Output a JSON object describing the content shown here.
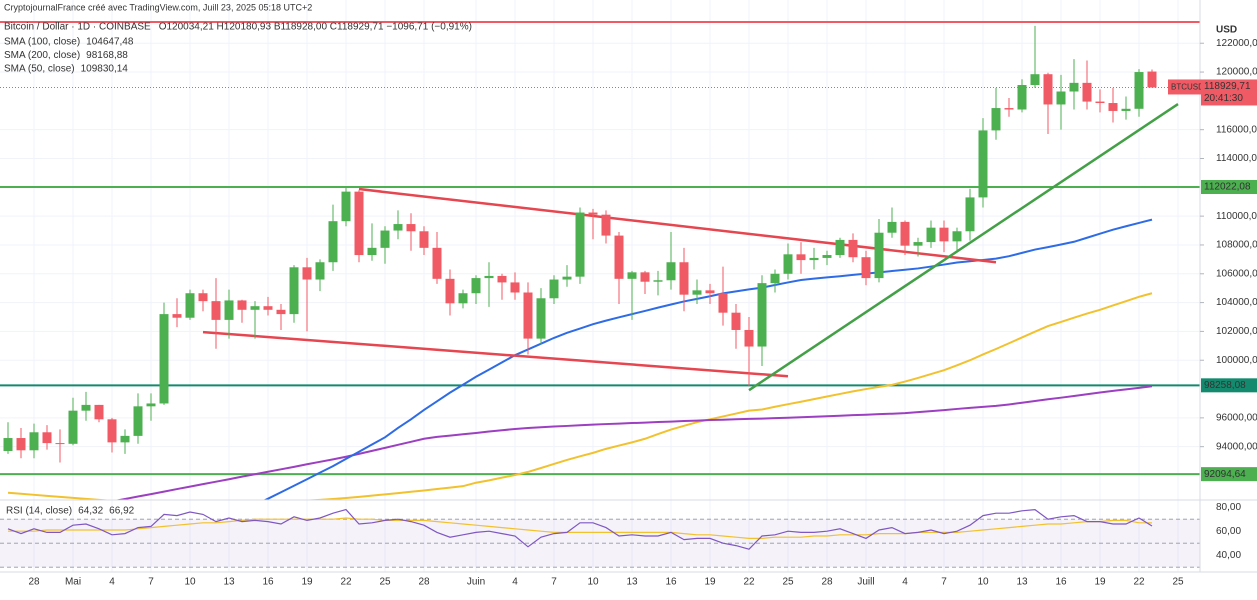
{
  "header": {
    "credit": "CryptojournalFrance créé avec TradingView.com, Juill 23, 2025 05:18 UTC+2",
    "symbol": "Bitcoin / Dollar · 1D · COINBASE",
    "ohlc": "O120034,21 H120180,93 B118928,00 C118929,71 −1096,71 (−0,91%)"
  },
  "chart_data": {
    "type": "candlestick",
    "categories": [
      null,
      null,
      "28",
      null,
      null,
      "Mai",
      null,
      null,
      "4",
      null,
      null,
      "7",
      null,
      null,
      "10",
      null,
      null,
      "13",
      null,
      null,
      "16",
      null,
      null,
      "19",
      null,
      null,
      "22",
      null,
      null,
      "25",
      null,
      null,
      "28",
      null,
      null,
      null,
      "Juin",
      null,
      null,
      "4",
      null,
      null,
      "7",
      null,
      null,
      "10",
      null,
      null,
      "13",
      null,
      null,
      "16",
      null,
      null,
      "19",
      null,
      null,
      "22",
      null,
      null,
      "25",
      null,
      null,
      "28",
      null,
      null,
      "Juill",
      null,
      null,
      "4",
      null,
      null,
      "7",
      null,
      null,
      "10",
      null,
      null,
      "13",
      null,
      null,
      "16",
      null,
      null,
      "19",
      null,
      null,
      "22",
      null,
      null,
      "25"
    ],
    "open": [
      93700,
      94600,
      93750,
      95000,
      94250,
      94200,
      96500,
      96900,
      95900,
      94300,
      94750,
      96800,
      97000,
      103200,
      102950,
      104650,
      104100,
      102800,
      104150,
      103500,
      103750,
      103500,
      103200,
      106450,
      105600,
      106800,
      109650,
      111700,
      107300,
      107800,
      109000,
      109450,
      108950,
      107800,
      105650,
      103950,
      104650,
      105700,
      105850,
      105400,
      104700,
      101500,
      104300,
      105600,
      105800,
      110250,
      110100,
      108650,
      105650,
      106100,
      105450,
      105550,
      106800,
      104550,
      104850,
      104650,
      103300,
      102100,
      100950,
      105350,
      106000,
      107350,
      106950,
      107100,
      107300,
      108350,
      107150,
      105700,
      108850,
      109600,
      107950,
      108200,
      109200,
      108250,
      108950,
      111300,
      115950,
      117500,
      117400,
      119100,
      119850,
      117750,
      118650,
      119250,
      117950,
      117850,
      117300,
      117450,
      120034.21,
      null,
      null
    ],
    "high": [
      95700,
      95300,
      95600,
      95500,
      95200,
      97400,
      97800,
      96900,
      96000,
      95200,
      97700,
      97700,
      104000,
      104300,
      104900,
      104900,
      105700,
      104900,
      104200,
      104100,
      104400,
      103900,
      106600,
      107100,
      107000,
      110800,
      111980,
      111800,
      109500,
      109300,
      110400,
      110200,
      109300,
      108900,
      106300,
      104900,
      105900,
      106800,
      106000,
      106100,
      105400,
      105000,
      105900,
      106600,
      110600,
      110500,
      110400,
      108900,
      106200,
      106200,
      106200,
      108900,
      107800,
      105600,
      105300,
      106500,
      103900,
      103000,
      105900,
      106300,
      108100,
      108200,
      107800,
      107600,
      108500,
      108800,
      107600,
      109800,
      110600,
      109700,
      108500,
      109700,
      109700,
      109200,
      111900,
      116800,
      118900,
      118200,
      119500,
      123200,
      119950,
      119800,
      120900,
      120800,
      118800,
      118900,
      118300,
      120200,
      120180.93,
      null,
      null
    ],
    "low": [
      93500,
      93200,
      93200,
      93800,
      92900,
      94100,
      95800,
      95700,
      93600,
      93500,
      94200,
      95800,
      96900,
      102300,
      102800,
      103400,
      100800,
      101500,
      102600,
      101500,
      103100,
      102100,
      102600,
      102000,
      104800,
      106200,
      109300,
      106800,
      106900,
      106700,
      108400,
      107600,
      107300,
      105300,
      103100,
      103600,
      103900,
      103700,
      104200,
      104200,
      100400,
      101100,
      103900,
      105100,
      105300,
      108400,
      108100,
      103900,
      102800,
      104600,
      104500,
      104900,
      103400,
      103900,
      103900,
      102400,
      100800,
      98200,
      99600,
      104700,
      105600,
      106000,
      106300,
      106600,
      107100,
      106800,
      105200,
      105400,
      108500,
      107300,
      107200,
      107800,
      107500,
      107600,
      108300,
      110600,
      115300,
      116900,
      117200,
      118900,
      115700,
      116000,
      117400,
      117400,
      117200,
      116500,
      116700,
      116900,
      118928,
      null,
      null
    ],
    "close": [
      94600,
      93750,
      95000,
      94250,
      94200,
      96500,
      96900,
      95900,
      94300,
      94750,
      96800,
      97000,
      103200,
      102950,
      104650,
      104100,
      102800,
      104150,
      103500,
      103750,
      103500,
      103200,
      106450,
      105600,
      106800,
      109650,
      111700,
      107300,
      107800,
      109000,
      109450,
      108950,
      107800,
      105650,
      103950,
      104650,
      105700,
      105850,
      105400,
      104700,
      101500,
      104300,
      105600,
      105800,
      110250,
      110100,
      108650,
      105650,
      106100,
      105450,
      105550,
      106800,
      104550,
      104850,
      104650,
      103300,
      102100,
      100950,
      105350,
      106000,
      107350,
      106950,
      107100,
      107300,
      108350,
      107150,
      105700,
      108850,
      109600,
      107950,
      108200,
      109200,
      108250,
      108950,
      111300,
      115950,
      117500,
      117400,
      119100,
      119850,
      117750,
      118650,
      119250,
      117950,
      117850,
      117300,
      117450,
      120000,
      118929.71,
      null,
      null
    ],
    "up_color": "#4caf50",
    "down_color": "#f05a65",
    "ylim": [
      90300,
      125000
    ],
    "y_unit": "USD",
    "grid": true,
    "yticks": [
      {
        "value": 122000,
        "label": "122000,00"
      },
      {
        "value": 120000,
        "label": "120000,00"
      },
      {
        "value": 116000,
        "label": "116000,00"
      },
      {
        "value": 114000,
        "label": "114000,00"
      },
      {
        "value": 110000,
        "label": "110000,00"
      },
      {
        "value": 108000,
        "label": "108000,00"
      },
      {
        "value": 106000,
        "label": "106000,00"
      },
      {
        "value": 104000,
        "label": "104000,00"
      },
      {
        "value": 102000,
        "label": "102000,00"
      },
      {
        "value": 100000,
        "label": "100000,00"
      },
      {
        "value": 96000,
        "label": "96000,00"
      },
      {
        "value": 94000,
        "label": "94000,00"
      }
    ],
    "last_price": {
      "name": "BTCUSD",
      "value": 118929.71,
      "label": "118929,71",
      "countdown": "20:41:30",
      "color": "#f05a65"
    },
    "levels": [
      {
        "value": 123470,
        "color": "#f05a65"
      },
      {
        "value": 112022.08,
        "label": "112022,08",
        "color": "#4caf50"
      },
      {
        "value": 98258.08,
        "label": "98258,08",
        "color": "#138a6e"
      },
      {
        "value": 92094.64,
        "label": "92094,64",
        "color": "#4caf50"
      }
    ],
    "trendlines": [
      {
        "x": [
          27,
          76
        ],
        "values": [
          111880,
          106800
        ],
        "color": "#e5464f"
      },
      {
        "x": [
          15,
          60
        ],
        "values": [
          101950,
          98890
        ],
        "color": "#e5464f"
      },
      {
        "x": [
          57,
          90
        ],
        "values": [
          97920,
          117780
        ],
        "color": "#43a047"
      }
    ],
    "overlays": [
      {
        "name": "SMA (100, close)",
        "last_label": "104647,48",
        "color": "#f2c12e",
        "values": [
          90800,
          90730,
          90660,
          90590,
          90520,
          90450,
          90380,
          90310,
          90240,
          90180,
          90120,
          90070,
          90030,
          90000,
          89980,
          89970,
          89980,
          90000,
          90030,
          90070,
          90110,
          90160,
          90210,
          90260,
          90310,
          90370,
          90440,
          90520,
          90600,
          90690,
          90780,
          90870,
          90960,
          91060,
          91160,
          91260,
          91500,
          91660,
          91850,
          92030,
          92250,
          92520,
          92800,
          93080,
          93330,
          93570,
          93850,
          94080,
          94300,
          94550,
          94880,
          95190,
          95450,
          95700,
          95900,
          96100,
          96300,
          96500,
          96580,
          96770,
          96950,
          97120,
          97300,
          97480,
          97660,
          97840,
          98000,
          98150,
          98290,
          98520,
          98770,
          99040,
          99310,
          99650,
          100000,
          100400,
          100780,
          101180,
          101580,
          101980,
          102370,
          102660,
          102950,
          103240,
          103500,
          103800,
          104100,
          104400,
          104650,
          null,
          null
        ]
      },
      {
        "name": "SMA (200, close)",
        "last_label": "98168,88",
        "color": "#9c3fc0",
        "values": [
          88820,
          88990,
          89160,
          89340,
          89510,
          89680,
          89850,
          90020,
          90200,
          90370,
          90540,
          90710,
          90880,
          91060,
          91230,
          91400,
          91570,
          91740,
          91920,
          92090,
          92260,
          92430,
          92600,
          92780,
          92950,
          93120,
          93300,
          93500,
          93710,
          93920,
          94130,
          94340,
          94550,
          94680,
          94770,
          94860,
          94950,
          95050,
          95140,
          95230,
          95300,
          95350,
          95400,
          95440,
          95490,
          95530,
          95570,
          95600,
          95640,
          95670,
          95710,
          95740,
          95780,
          95810,
          95850,
          95870,
          95900,
          95930,
          95950,
          95980,
          96010,
          96040,
          96080,
          96110,
          96150,
          96190,
          96220,
          96260,
          96290,
          96330,
          96400,
          96470,
          96540,
          96620,
          96690,
          96760,
          96830,
          96930,
          97050,
          97170,
          97290,
          97400,
          97520,
          97640,
          97760,
          97870,
          97980,
          98080,
          98190,
          null,
          null
        ]
      },
      {
        "name": "SMA (50, close)",
        "last_label": "109830,14",
        "color": "#2e6be6",
        "values": [
          82600,
          83000,
          83400,
          83800,
          84200,
          84600,
          85000,
          85400,
          85800,
          86200,
          86600,
          87000,
          87400,
          87800,
          88200,
          88600,
          89000,
          89400,
          89700,
          89950,
          90390,
          90840,
          91290,
          91740,
          92200,
          92650,
          93150,
          93650,
          94150,
          94650,
          95300,
          95900,
          96550,
          97150,
          97750,
          98300,
          98850,
          99350,
          99850,
          100350,
          100750,
          101150,
          101550,
          101900,
          102200,
          102500,
          102750,
          102980,
          103200,
          103420,
          103650,
          103870,
          104080,
          104260,
          104440,
          104640,
          104780,
          104920,
          105040,
          105220,
          105400,
          105570,
          105660,
          105750,
          105830,
          105920,
          106010,
          106100,
          106190,
          106280,
          106370,
          106500,
          106640,
          106780,
          106870,
          106960,
          107050,
          107220,
          107450,
          107680,
          107850,
          108030,
          108220,
          108500,
          108780,
          109060,
          109300,
          109530,
          109760,
          null,
          null
        ]
      }
    ],
    "rsi": {
      "name": "RSI (14, close)",
      "value_label": "64,32",
      "ma_label": "66,92",
      "color": "#7e57c2",
      "ma_color": "#f2c12e",
      "lim": [
        26,
        86
      ],
      "band": [
        30,
        70
      ],
      "mid": 50,
      "ticks": [
        {
          "value": 80,
          "label": "80,00"
        },
        {
          "value": 60,
          "label": "60,00"
        },
        {
          "value": 40,
          "label": "40,00"
        }
      ],
      "values": [
        62,
        58,
        62,
        59,
        59,
        65,
        66,
        62,
        57,
        58,
        63,
        64,
        74,
        73,
        76,
        74,
        68,
        71,
        68,
        69,
        68,
        66,
        72,
        69,
        71,
        75,
        78,
        66,
        67,
        69,
        70,
        68,
        65,
        59,
        55,
        57,
        59,
        60,
        58,
        56,
        47,
        55,
        58,
        59,
        67,
        67,
        63,
        56,
        57,
        56,
        56,
        59,
        53,
        54,
        54,
        50,
        48,
        45,
        56,
        57,
        60,
        59,
        59,
        60,
        62,
        58,
        54,
        61,
        63,
        58,
        59,
        61,
        58,
        60,
        65,
        73,
        75,
        75,
        77,
        78,
        70,
        72,
        73,
        68,
        68,
        66,
        66,
        71,
        64.32,
        null,
        null
      ],
      "ma": [
        60,
        60,
        60,
        61,
        61,
        61,
        61,
        61,
        61,
        61,
        62,
        63,
        64,
        65,
        66,
        67,
        67,
        68,
        69,
        70,
        70,
        70,
        70,
        70,
        70,
        70,
        71,
        70,
        70,
        69,
        69,
        69,
        69,
        68,
        67,
        66,
        65,
        64,
        63,
        62,
        61,
        60,
        59,
        59,
        59,
        59,
        59,
        59,
        59,
        59,
        59,
        59,
        58,
        57,
        57,
        56,
        55,
        54,
        54,
        55,
        55,
        55,
        56,
        56,
        57,
        57,
        57,
        58,
        58,
        58,
        59,
        59,
        59,
        59,
        60,
        61,
        62,
        63,
        64,
        65,
        66,
        66,
        67,
        68,
        68,
        69,
        69,
        67,
        66.92,
        null,
        null
      ]
    }
  }
}
